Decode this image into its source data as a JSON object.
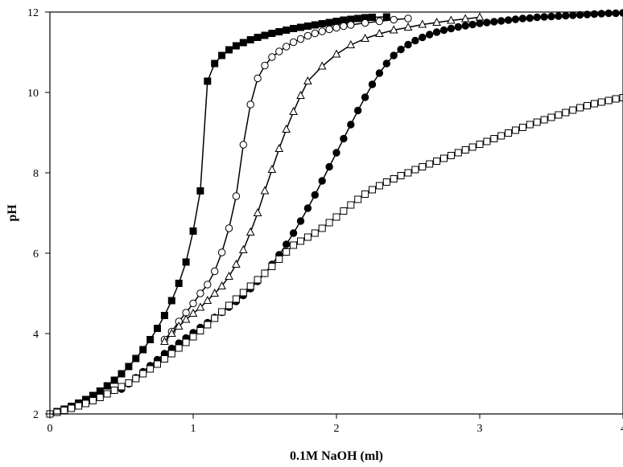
{
  "chart_data": {
    "type": "scatter",
    "title": "",
    "xlabel": "0.1M NaOH (ml)",
    "ylabel": "pH",
    "xlim": [
      0,
      4
    ],
    "ylim": [
      2,
      12
    ],
    "xticks": [
      0,
      1,
      2,
      3,
      4
    ],
    "yticks": [
      2,
      4,
      6,
      8,
      10,
      12
    ],
    "grid": false,
    "legend": "none",
    "series": [
      {
        "marker": "filled-square",
        "color": "#000000",
        "x": [
          0,
          0.05,
          0.1,
          0.15,
          0.2,
          0.25,
          0.3,
          0.35,
          0.4,
          0.45,
          0.5,
          0.55,
          0.6,
          0.65,
          0.7,
          0.75,
          0.8,
          0.85,
          0.9,
          0.95,
          1.0,
          1.05,
          1.1,
          1.15,
          1.2,
          1.25,
          1.3,
          1.35,
          1.4,
          1.45,
          1.5,
          1.55,
          1.6,
          1.65,
          1.7,
          1.75,
          1.8,
          1.85,
          1.9,
          1.95,
          2.0,
          2.05,
          2.1,
          2.15,
          2.2,
          2.25,
          2.35
        ],
        "y": [
          2.0,
          2.06,
          2.12,
          2.19,
          2.27,
          2.36,
          2.46,
          2.57,
          2.7,
          2.84,
          3.0,
          3.18,
          3.38,
          3.6,
          3.85,
          4.13,
          4.45,
          4.82,
          5.25,
          5.78,
          6.55,
          7.55,
          10.28,
          10.72,
          10.92,
          11.06,
          11.16,
          11.24,
          11.31,
          11.37,
          11.42,
          11.47,
          11.51,
          11.55,
          11.59,
          11.62,
          11.65,
          11.68,
          11.71,
          11.74,
          11.77,
          11.8,
          11.82,
          11.84,
          11.86,
          11.87,
          11.88
        ]
      },
      {
        "marker": "open-circle",
        "color": "#000000",
        "x": [
          0.8,
          0.85,
          0.9,
          0.95,
          1.0,
          1.05,
          1.1,
          1.15,
          1.2,
          1.25,
          1.3,
          1.35,
          1.4,
          1.45,
          1.5,
          1.55,
          1.6,
          1.65,
          1.7,
          1.75,
          1.8,
          1.85,
          1.9,
          1.95,
          2.0,
          2.05,
          2.1,
          2.2,
          2.3,
          2.4,
          2.5
        ],
        "y": [
          3.85,
          4.05,
          4.3,
          4.52,
          4.75,
          5.0,
          5.22,
          5.55,
          6.02,
          6.62,
          7.42,
          8.7,
          9.7,
          10.35,
          10.67,
          10.88,
          11.02,
          11.14,
          11.25,
          11.33,
          11.41,
          11.47,
          11.52,
          11.57,
          11.61,
          11.65,
          11.68,
          11.73,
          11.77,
          11.81,
          11.84
        ]
      },
      {
        "marker": "open-triangle",
        "color": "#000000",
        "x": [
          0.8,
          0.85,
          0.9,
          0.95,
          1.0,
          1.05,
          1.1,
          1.15,
          1.2,
          1.25,
          1.3,
          1.35,
          1.4,
          1.45,
          1.5,
          1.55,
          1.6,
          1.65,
          1.7,
          1.75,
          1.8,
          1.9,
          2.0,
          2.1,
          2.2,
          2.3,
          2.4,
          2.5,
          2.6,
          2.7,
          2.8,
          2.9,
          3.0
        ],
        "y": [
          3.8,
          4.0,
          4.18,
          4.35,
          4.5,
          4.65,
          4.82,
          5.0,
          5.18,
          5.42,
          5.72,
          6.08,
          6.52,
          7.0,
          7.55,
          8.08,
          8.6,
          9.08,
          9.52,
          9.92,
          10.28,
          10.65,
          10.95,
          11.18,
          11.34,
          11.46,
          11.55,
          11.62,
          11.69,
          11.74,
          11.79,
          11.83,
          11.87
        ]
      },
      {
        "marker": "filled-circle",
        "color": "#000000",
        "x": [
          0.5,
          0.55,
          0.6,
          0.65,
          0.7,
          0.75,
          0.8,
          0.85,
          0.9,
          0.95,
          1.0,
          1.05,
          1.1,
          1.15,
          1.2,
          1.25,
          1.3,
          1.35,
          1.4,
          1.45,
          1.5,
          1.55,
          1.6,
          1.65,
          1.7,
          1.75,
          1.8,
          1.85,
          1.9,
          1.95,
          2.0,
          2.05,
          2.1,
          2.15,
          2.2,
          2.25,
          2.3,
          2.35,
          2.4,
          2.45,
          2.5,
          2.55,
          2.6,
          2.65,
          2.7,
          2.75,
          2.8,
          2.85,
          2.9,
          2.95,
          3.0,
          3.05,
          3.1,
          3.15,
          3.2,
          3.25,
          3.3,
          3.35,
          3.4,
          3.45,
          3.5,
          3.55,
          3.6,
          3.65,
          3.7,
          3.75,
          3.8,
          3.85,
          3.9,
          3.95,
          4.0
        ],
        "y": [
          2.62,
          2.75,
          2.9,
          3.05,
          3.2,
          3.35,
          3.5,
          3.63,
          3.76,
          3.89,
          4.02,
          4.15,
          4.27,
          4.4,
          4.53,
          4.66,
          4.8,
          4.95,
          5.12,
          5.3,
          5.5,
          5.72,
          5.96,
          6.22,
          6.5,
          6.8,
          7.12,
          7.45,
          7.8,
          8.15,
          8.5,
          8.85,
          9.2,
          9.55,
          9.88,
          10.2,
          10.48,
          10.72,
          10.92,
          11.07,
          11.19,
          11.29,
          11.37,
          11.44,
          11.5,
          11.55,
          11.59,
          11.63,
          11.66,
          11.69,
          11.72,
          11.74,
          11.76,
          11.78,
          11.8,
          11.82,
          11.84,
          11.85,
          11.87,
          11.88,
          11.89,
          11.9,
          11.91,
          11.92,
          11.93,
          11.94,
          11.95,
          11.96,
          11.97,
          11.97,
          11.98
        ]
      },
      {
        "marker": "open-square",
        "color": "#000000",
        "x": [
          0,
          0.05,
          0.1,
          0.15,
          0.2,
          0.25,
          0.3,
          0.35,
          0.4,
          0.45,
          0.5,
          0.55,
          0.6,
          0.65,
          0.7,
          0.75,
          0.8,
          0.85,
          0.9,
          0.95,
          1.0,
          1.05,
          1.1,
          1.15,
          1.2,
          1.25,
          1.3,
          1.35,
          1.4,
          1.45,
          1.5,
          1.55,
          1.6,
          1.65,
          1.7,
          1.75,
          1.8,
          1.85,
          1.9,
          1.95,
          2.0,
          2.05,
          2.1,
          2.15,
          2.2,
          2.25,
          2.3,
          2.35,
          2.4,
          2.45,
          2.5,
          2.55,
          2.6,
          2.65,
          2.7,
          2.75,
          2.8,
          2.85,
          2.9,
          2.95,
          3.0,
          3.05,
          3.1,
          3.15,
          3.2,
          3.25,
          3.3,
          3.35,
          3.4,
          3.45,
          3.5,
          3.55,
          3.6,
          3.65,
          3.7,
          3.75,
          3.8,
          3.85,
          3.9,
          3.95,
          4.0
        ],
        "y": [
          2.0,
          2.04,
          2.09,
          2.14,
          2.2,
          2.26,
          2.33,
          2.41,
          2.5,
          2.59,
          2.68,
          2.77,
          2.88,
          3.0,
          3.12,
          3.24,
          3.37,
          3.5,
          3.64,
          3.78,
          3.92,
          4.07,
          4.22,
          4.38,
          4.54,
          4.7,
          4.86,
          5.02,
          5.18,
          5.34,
          5.5,
          5.67,
          5.85,
          6.03,
          6.2,
          6.3,
          6.4,
          6.5,
          6.62,
          6.76,
          6.9,
          7.05,
          7.2,
          7.34,
          7.47,
          7.58,
          7.68,
          7.77,
          7.85,
          7.93,
          8.0,
          8.08,
          8.15,
          8.22,
          8.29,
          8.36,
          8.43,
          8.5,
          8.57,
          8.64,
          8.71,
          8.78,
          8.85,
          8.92,
          8.99,
          9.06,
          9.13,
          9.2,
          9.26,
          9.32,
          9.38,
          9.44,
          9.5,
          9.56,
          9.62,
          9.67,
          9.72,
          9.76,
          9.8,
          9.84,
          9.87
        ]
      }
    ]
  }
}
